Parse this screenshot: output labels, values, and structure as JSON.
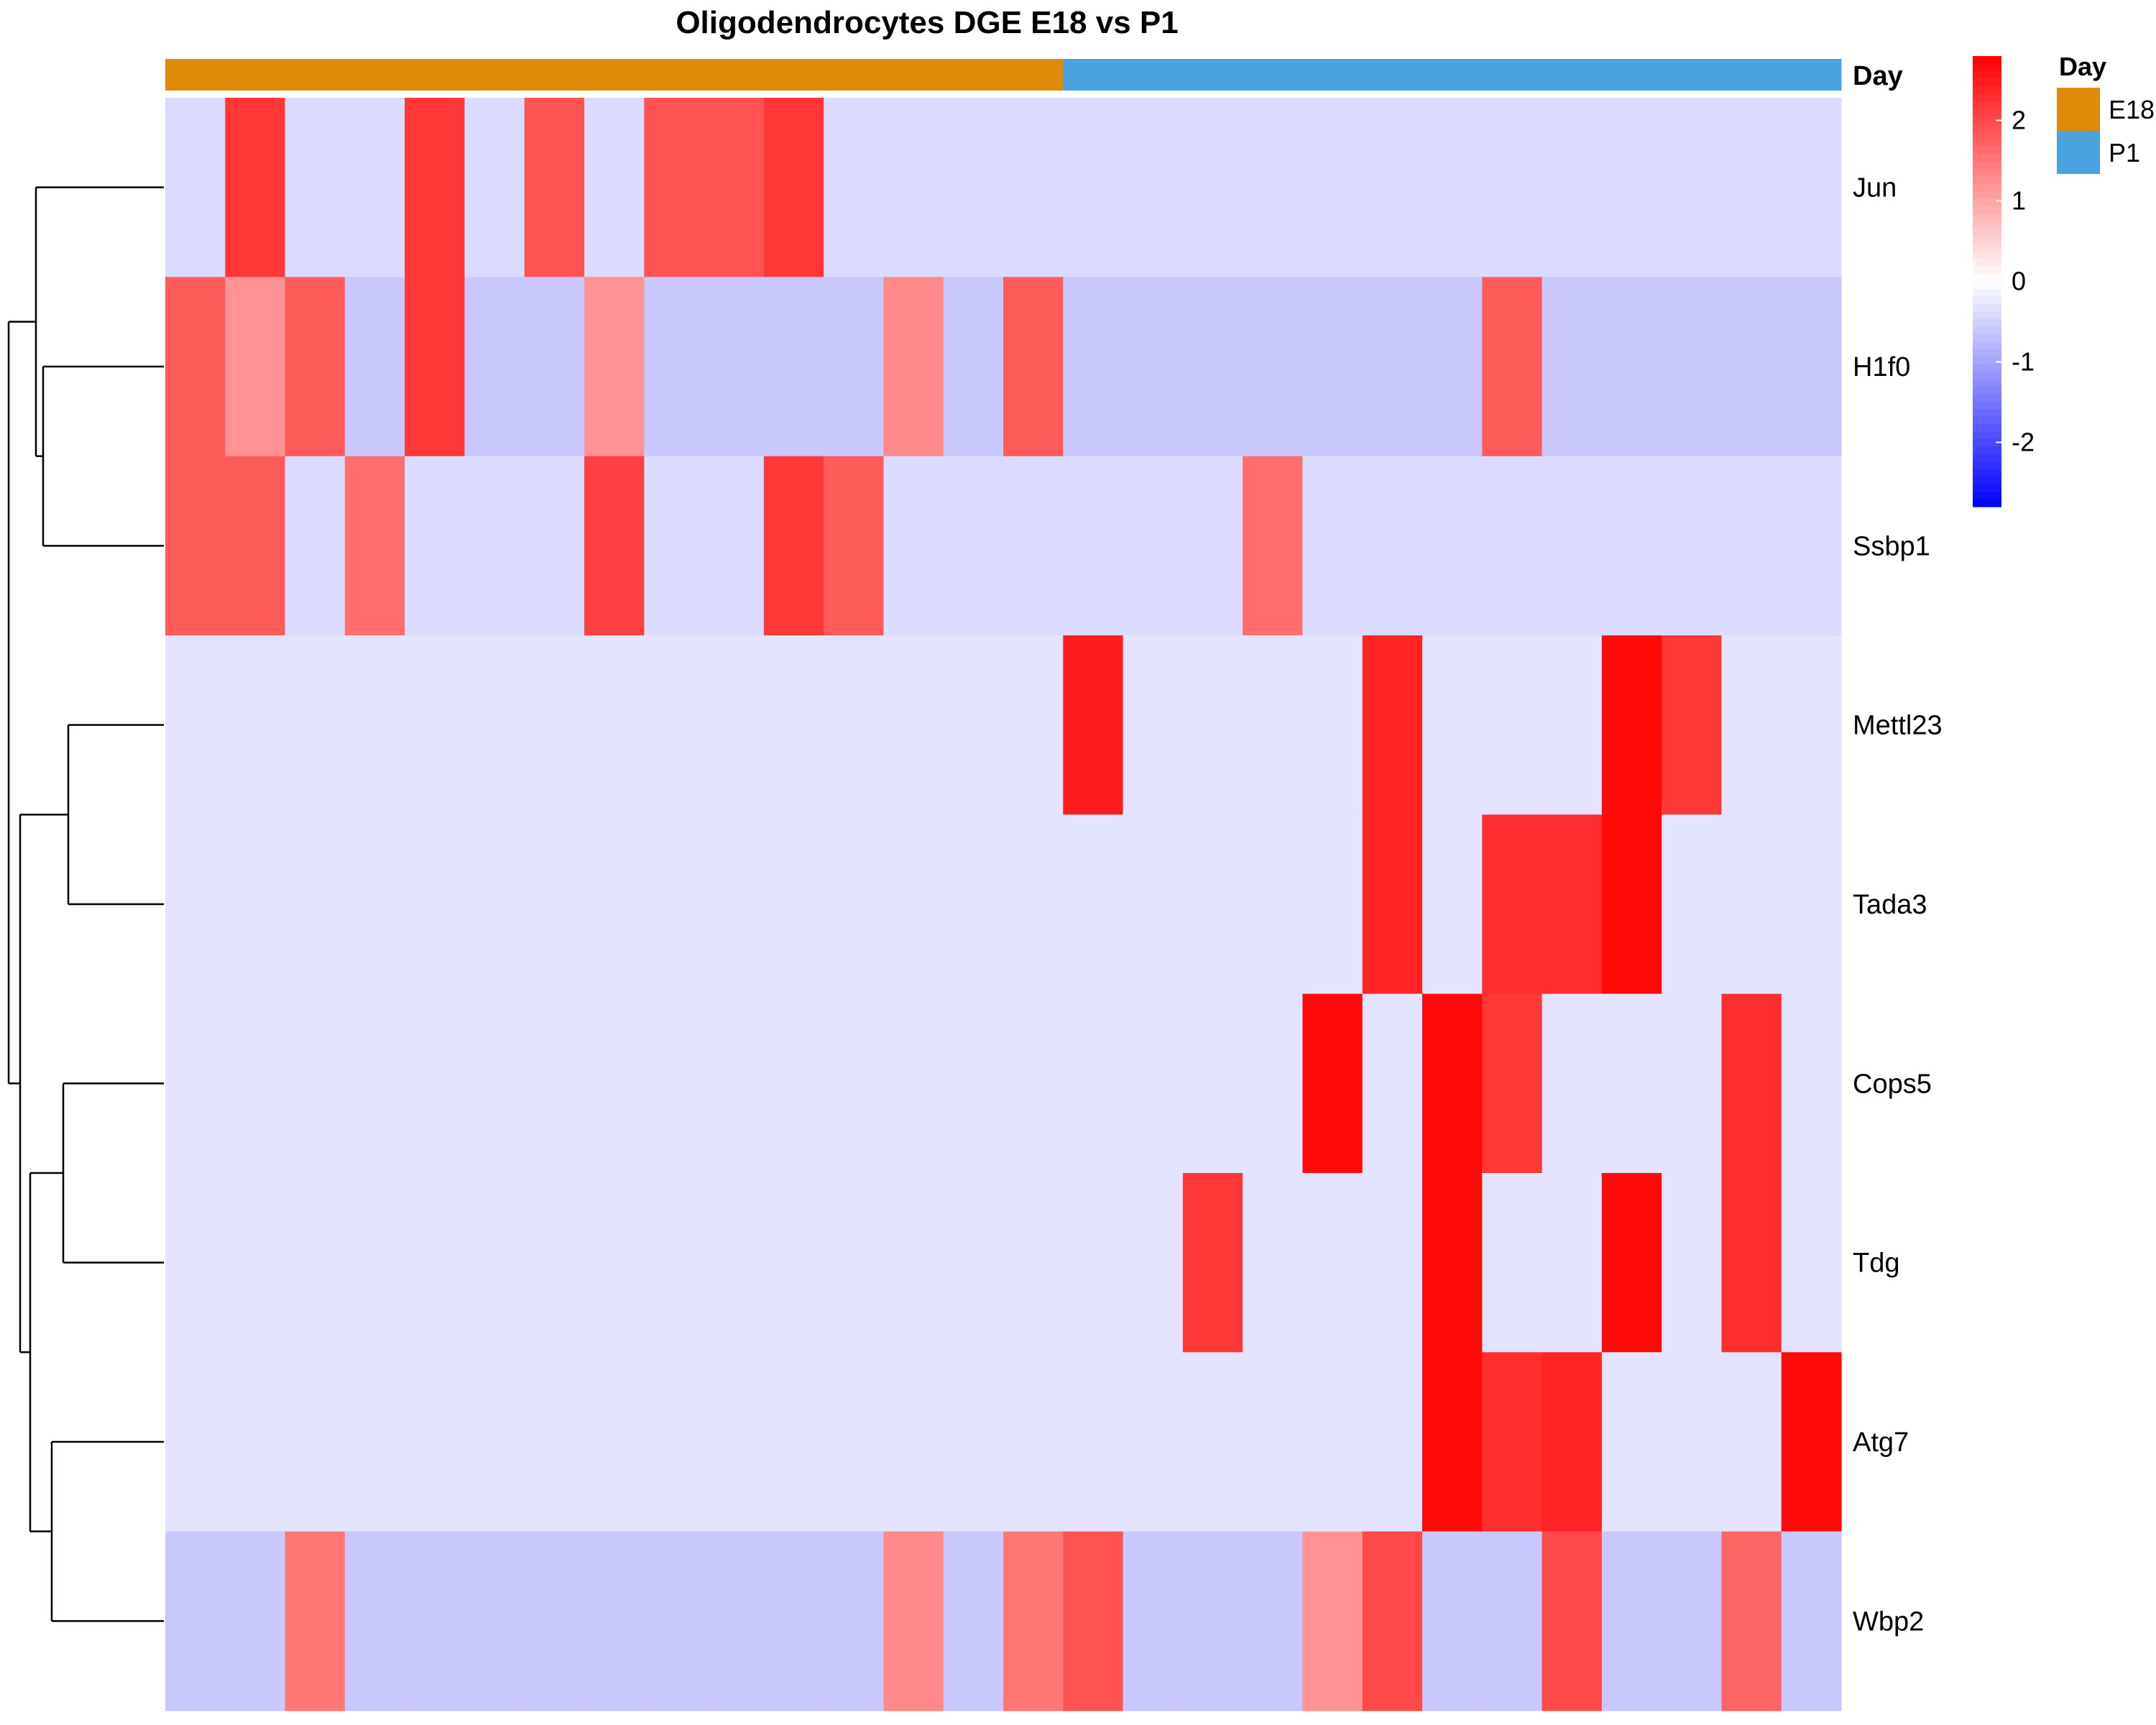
{
  "chart_data": {
    "type": "heatmap",
    "title": "Oligodendrocytes DGE E18 vs P1",
    "rows": [
      "Jun",
      "H1f0",
      "Ssbp1",
      "Mettl23",
      "Tada3",
      "Cops5",
      "Tdg",
      "Atg7",
      "Wbp2"
    ],
    "n_columns": 28,
    "column_groups": [
      "E18",
      "E18",
      "E18",
      "E18",
      "E18",
      "E18",
      "E18",
      "E18",
      "E18",
      "E18",
      "E18",
      "E18",
      "E18",
      "E18",
      "E18",
      "P1",
      "P1",
      "P1",
      "P1",
      "P1",
      "P1",
      "P1",
      "P1",
      "P1",
      "P1",
      "P1",
      "P1",
      "P1"
    ],
    "values": [
      [
        -0.4,
        2.2,
        -0.4,
        -0.4,
        2.2,
        -0.4,
        1.9,
        -0.4,
        1.9,
        1.9,
        2.2,
        -0.4,
        -0.4,
        -0.4,
        -0.4,
        -0.4,
        -0.4,
        -0.4,
        -0.4,
        -0.4,
        -0.4,
        -0.4,
        -0.4,
        -0.4,
        -0.4,
        -0.4,
        -0.4,
        -0.4
      ],
      [
        1.8,
        1.2,
        1.8,
        -0.6,
        2.2,
        -0.6,
        -0.6,
        1.2,
        -0.6,
        -0.6,
        -0.6,
        -0.6,
        1.3,
        -0.6,
        1.8,
        -0.6,
        -0.6,
        -0.6,
        -0.6,
        -0.6,
        -0.6,
        -0.6,
        1.8,
        -0.6,
        -0.6,
        -0.6,
        -0.6,
        -0.6
      ],
      [
        1.8,
        1.8,
        -0.4,
        1.6,
        -0.4,
        -0.4,
        -0.4,
        2.1,
        -0.4,
        -0.4,
        2.2,
        1.8,
        -0.4,
        -0.4,
        -0.4,
        -0.4,
        -0.4,
        -0.4,
        1.6,
        -0.4,
        -0.4,
        -0.4,
        -0.4,
        -0.4,
        -0.4,
        -0.4,
        -0.4,
        -0.4
      ],
      [
        -0.3,
        -0.3,
        -0.3,
        -0.3,
        -0.3,
        -0.3,
        -0.3,
        -0.3,
        -0.3,
        -0.3,
        -0.3,
        -0.3,
        -0.3,
        -0.3,
        -0.3,
        2.5,
        -0.3,
        -0.3,
        -0.3,
        -0.3,
        2.4,
        -0.3,
        -0.3,
        -0.3,
        2.7,
        2.2,
        -0.3,
        -0.3
      ],
      [
        -0.3,
        -0.3,
        -0.3,
        -0.3,
        -0.3,
        -0.3,
        -0.3,
        -0.3,
        -0.3,
        -0.3,
        -0.3,
        -0.3,
        -0.3,
        -0.3,
        -0.3,
        -0.3,
        -0.3,
        -0.3,
        -0.3,
        -0.3,
        2.4,
        -0.3,
        2.3,
        2.3,
        2.7,
        -0.3,
        -0.3,
        -0.3
      ],
      [
        -0.3,
        -0.3,
        -0.3,
        -0.3,
        -0.3,
        -0.3,
        -0.3,
        -0.3,
        -0.3,
        -0.3,
        -0.3,
        -0.3,
        -0.3,
        -0.3,
        -0.3,
        -0.3,
        -0.3,
        -0.3,
        -0.3,
        2.7,
        -0.3,
        2.7,
        2.2,
        -0.3,
        -0.3,
        -0.3,
        2.3,
        -0.3
      ],
      [
        -0.3,
        -0.3,
        -0.3,
        -0.3,
        -0.3,
        -0.3,
        -0.3,
        -0.3,
        -0.3,
        -0.3,
        -0.3,
        -0.3,
        -0.3,
        -0.3,
        -0.3,
        -0.3,
        -0.3,
        2.2,
        -0.3,
        -0.3,
        -0.3,
        2.7,
        -0.3,
        -0.3,
        2.7,
        -0.3,
        2.3,
        -0.3
      ],
      [
        -0.3,
        -0.3,
        -0.3,
        -0.3,
        -0.3,
        -0.3,
        -0.3,
        -0.3,
        -0.3,
        -0.3,
        -0.3,
        -0.3,
        -0.3,
        -0.3,
        -0.3,
        -0.3,
        -0.3,
        -0.3,
        -0.3,
        -0.3,
        -0.3,
        2.7,
        2.3,
        2.4,
        -0.3,
        -0.3,
        -0.3,
        2.7
      ],
      [
        -0.6,
        -0.6,
        1.5,
        -0.6,
        -0.6,
        -0.6,
        -0.6,
        -0.6,
        -0.6,
        -0.6,
        -0.6,
        -0.6,
        1.3,
        -0.6,
        1.5,
        1.9,
        -0.6,
        -0.6,
        -0.6,
        1.2,
        2.0,
        -0.6,
        -0.6,
        2.0,
        -0.6,
        -0.6,
        1.7,
        -0.6
      ]
    ],
    "color_scale": {
      "min": -2.8,
      "mid": 0,
      "max": 2.8,
      "low": "#0000ff",
      "mid_color": "#ffffff",
      "high": "#ff0000",
      "ticks": [
        -2,
        -1,
        0,
        1,
        2
      ]
    },
    "annotation": {
      "label": "Day",
      "legend_title": "Day",
      "levels": [
        {
          "name": "E18",
          "color": "#e08a0b"
        },
        {
          "name": "P1",
          "color": "#4aa3df"
        }
      ]
    }
  }
}
